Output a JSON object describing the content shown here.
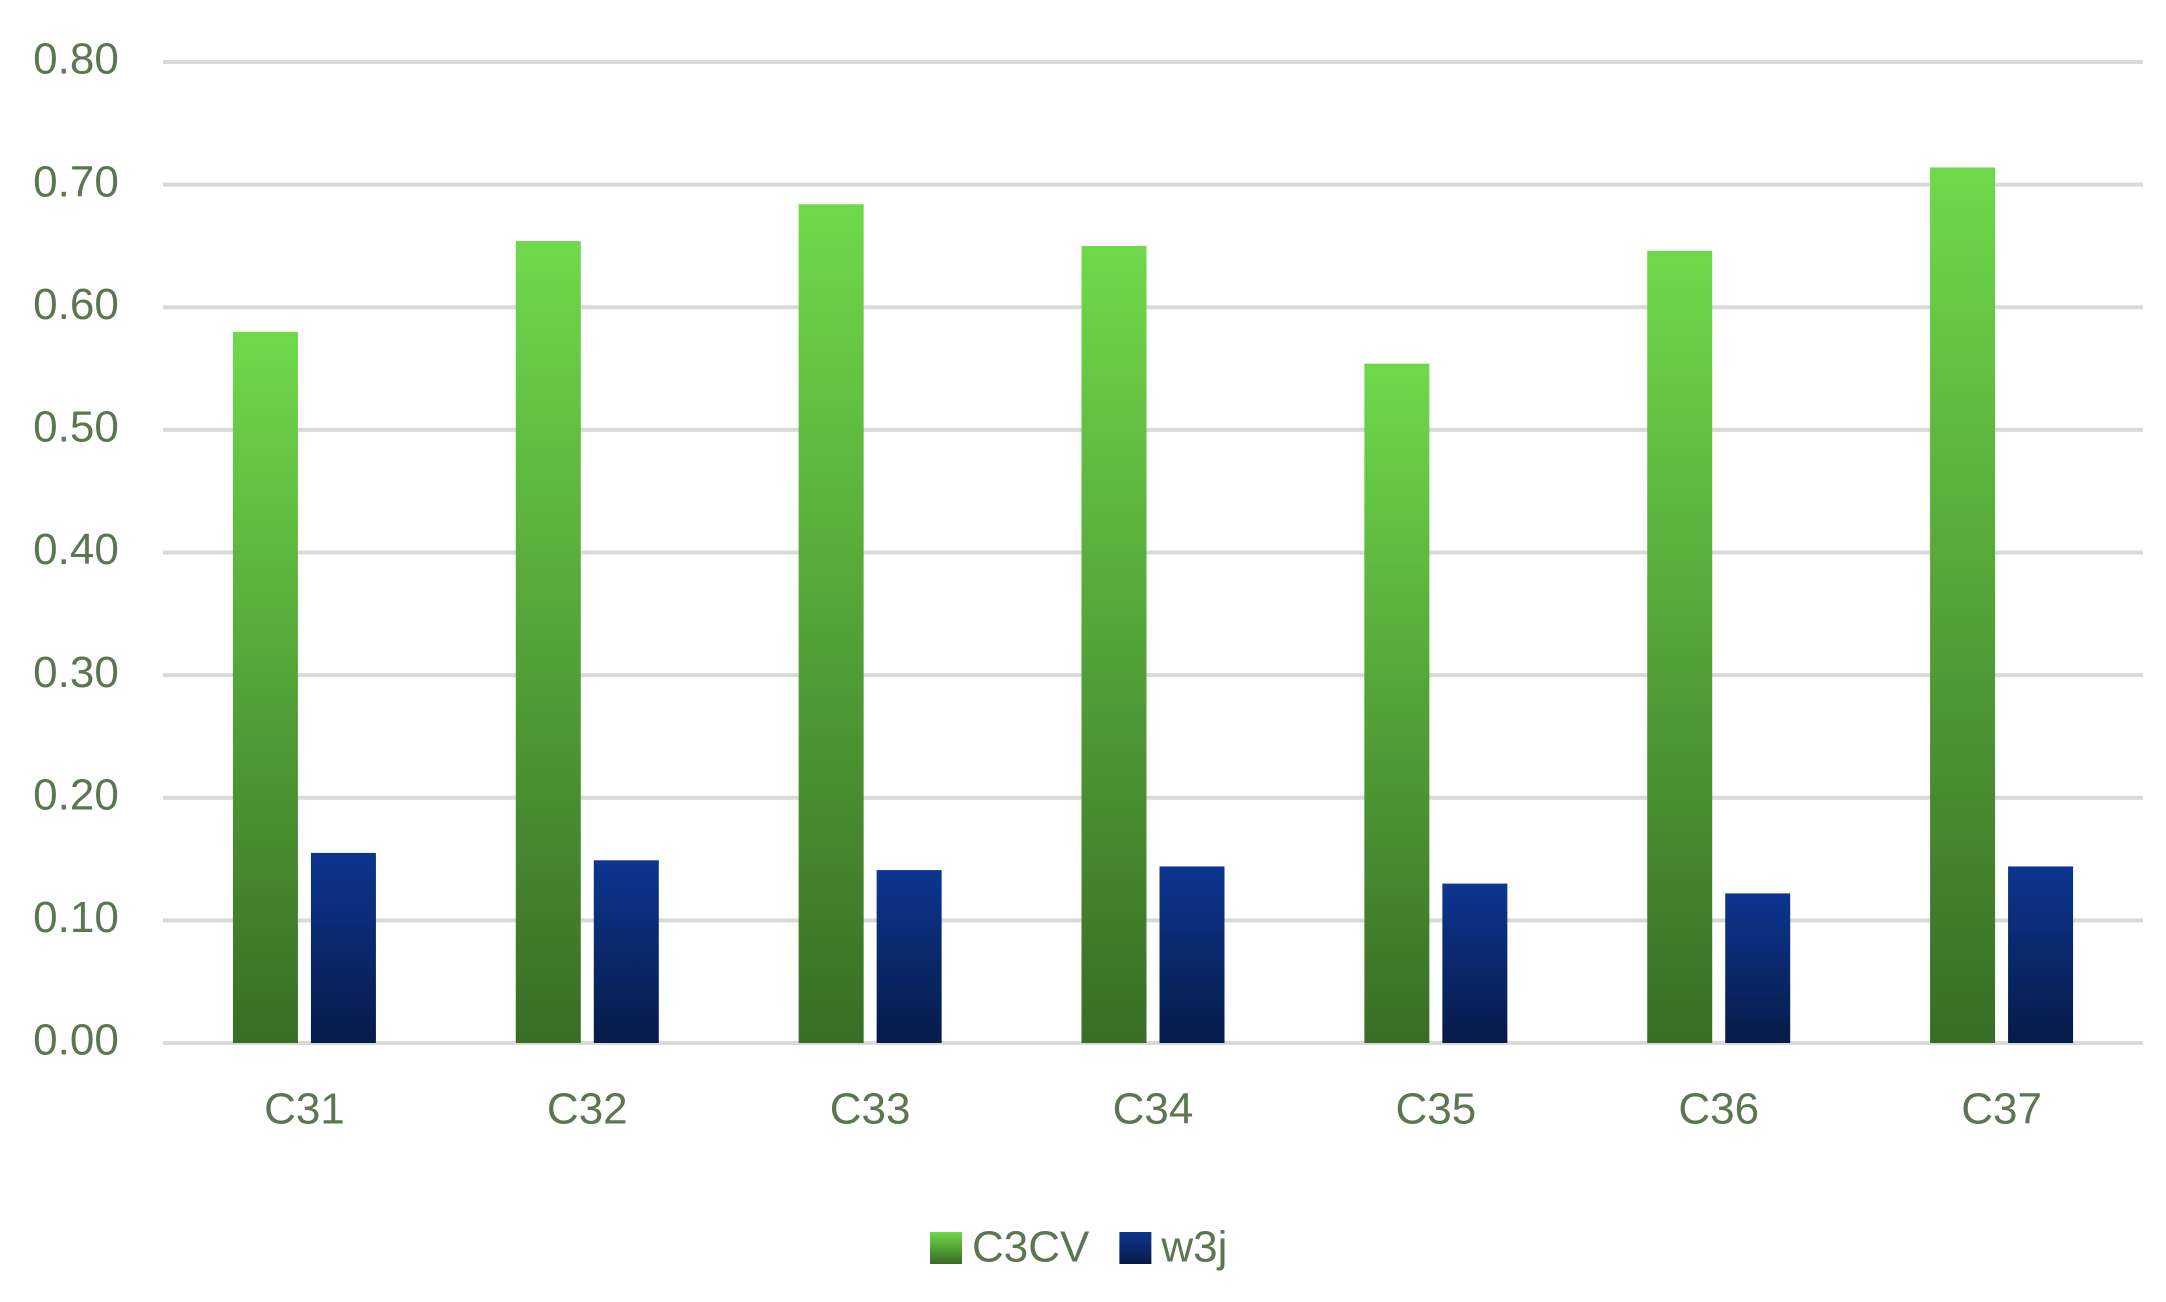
{
  "chart_data": {
    "type": "bar",
    "categories": [
      "C31",
      "C32",
      "C33",
      "C34",
      "C35",
      "C36",
      "C37"
    ],
    "series": [
      {
        "name": "C3CV",
        "color": "#6fd94a",
        "values": [
          0.58,
          0.654,
          0.684,
          0.65,
          0.554,
          0.646,
          0.714
        ]
      },
      {
        "name": "w3j",
        "color": "#0d3590",
        "values": [
          0.155,
          0.149,
          0.141,
          0.144,
          0.13,
          0.122,
          0.144
        ]
      }
    ],
    "ylim": [
      0,
      0.8
    ],
    "yticks": [
      {
        "value": 0,
        "label": "0.00"
      },
      {
        "value": 0.1,
        "label": "0.10"
      },
      {
        "value": 0.2,
        "label": "0.20"
      },
      {
        "value": 0.3,
        "label": "0.30"
      },
      {
        "value": 0.4,
        "label": "0.40"
      },
      {
        "value": 0.5,
        "label": "0.50"
      },
      {
        "value": 0.6,
        "label": "0.60"
      },
      {
        "value": 0.7,
        "label": "0.70"
      },
      {
        "value": 0.8,
        "label": "0.80"
      }
    ],
    "grid": true,
    "legend": "bottom"
  }
}
